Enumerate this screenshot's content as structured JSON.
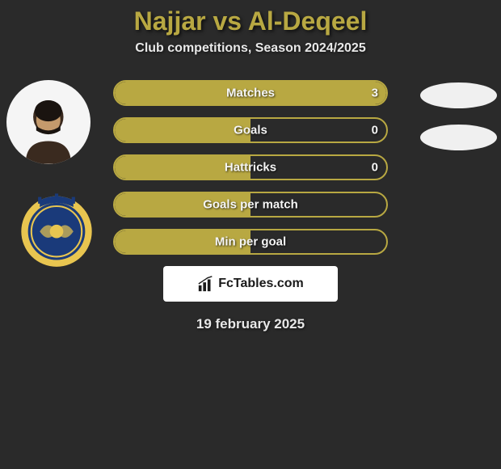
{
  "title": "Najjar vs Al-Deqeel",
  "subtitle": "Club competitions, Season 2024/2025",
  "date": "19 february 2025",
  "brand": "FcTables.com",
  "colors": {
    "accent": "#b8a842",
    "background": "#2a2a2a",
    "text_light": "#e8e8e8",
    "bar_text": "#f5f5f5",
    "brand_bg": "#ffffff",
    "brand_text": "#1a1a1a",
    "avatar_bg": "#f5f5f5",
    "crest_ring": "#e8c550",
    "crest_inner": "#1a3a7a"
  },
  "bars": [
    {
      "label": "Matches",
      "value": "3",
      "fill_pct": 100
    },
    {
      "label": "Goals",
      "value": "0",
      "fill_pct": 50
    },
    {
      "label": "Hattricks",
      "value": "0",
      "fill_pct": 50
    },
    {
      "label": "Goals per match",
      "value": "",
      "fill_pct": 50
    },
    {
      "label": "Min per goal",
      "value": "",
      "fill_pct": 50
    }
  ],
  "right_blobs_count": 2
}
